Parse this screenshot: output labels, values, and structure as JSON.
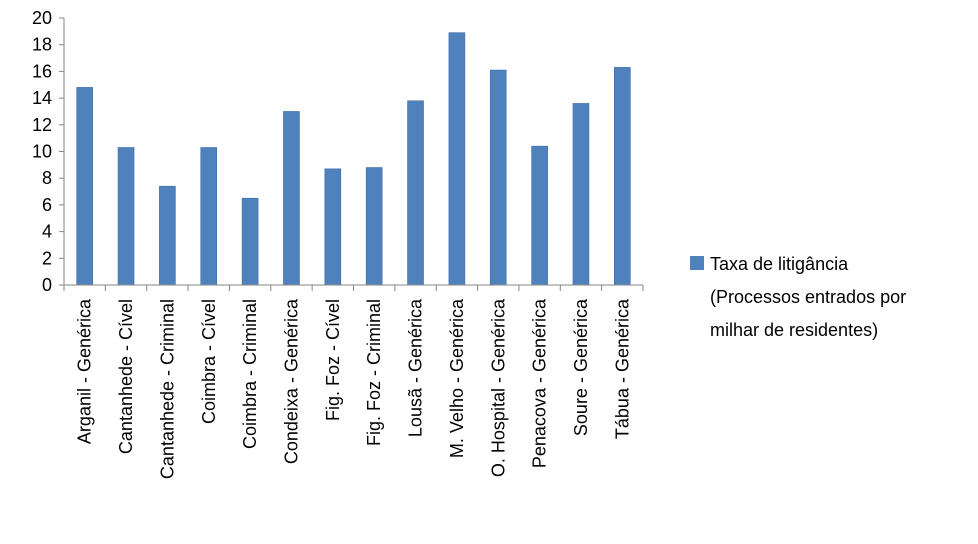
{
  "chart_data": {
    "type": "bar",
    "categories": [
      "Arganil - Genérica",
      "Cantanhede - Cível",
      "Cantanhede - Criminal",
      "Coimbra - Cível",
      "Coimbra - Criminal",
      "Condeixa - Genérica",
      "Fig. Foz - Cível",
      "Fig. Foz - Criminal",
      "Lousã - Genérica",
      "M. Velho - Genérica",
      "O. Hospital - Genérica",
      "Penacova - Genérica",
      "Soure - Genérica",
      "Tábua - Genérica"
    ],
    "series": [
      {
        "name": "Taxa de litigância (Processos entrados por milhar de residentes)",
        "values": [
          14.8,
          10.3,
          7.4,
          10.3,
          6.5,
          13.0,
          8.7,
          8.8,
          13.8,
          18.9,
          16.1,
          10.4,
          13.6,
          16.3
        ]
      }
    ],
    "legend": {
      "lines": [
        "Taxa de litigância",
        "(Processos entrados por",
        "milhar de residentes)"
      ],
      "position": "right"
    },
    "ylim": [
      0,
      20
    ],
    "yticks": [
      "0",
      "2",
      "4",
      "6",
      "8",
      "10",
      "12",
      "14",
      "16",
      "18",
      "20"
    ],
    "colors": {
      "bar": "#4f81bd",
      "bar_edge": "#3f6fa8",
      "axis": "#868686"
    },
    "grid": false
  }
}
